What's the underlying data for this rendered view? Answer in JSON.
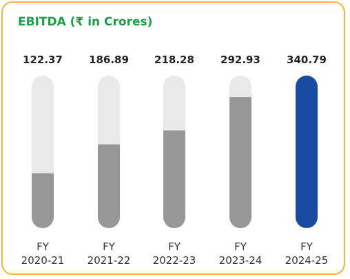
{
  "title": "EBITDA (₹ in Crores)",
  "colors": {
    "border": "#f2b632",
    "title": "#1f9d49",
    "track": "#e9e9e9",
    "fill": "#979797",
    "highlight": "#1a4ba3",
    "text": "#222222",
    "axis_text": "#333333"
  },
  "chart_data": {
    "type": "bar",
    "title": "EBITDA (₹ in Crores)",
    "categories": [
      [
        "FY",
        "2020-21"
      ],
      [
        "FY",
        "2021-22"
      ],
      [
        "FY",
        "2022-23"
      ],
      [
        "FY",
        "2023-24"
      ],
      [
        "FY",
        "2024-25"
      ]
    ],
    "values": [
      122.37,
      186.89,
      218.28,
      292.93,
      340.79
    ],
    "value_labels": [
      "122.37",
      "186.89",
      "218.28",
      "292.93",
      "340.79"
    ],
    "highlighted_index": 4,
    "ylim": [
      0,
      340.79
    ],
    "grid": false,
    "legend": "none",
    "xlabel": "",
    "ylabel": ""
  }
}
